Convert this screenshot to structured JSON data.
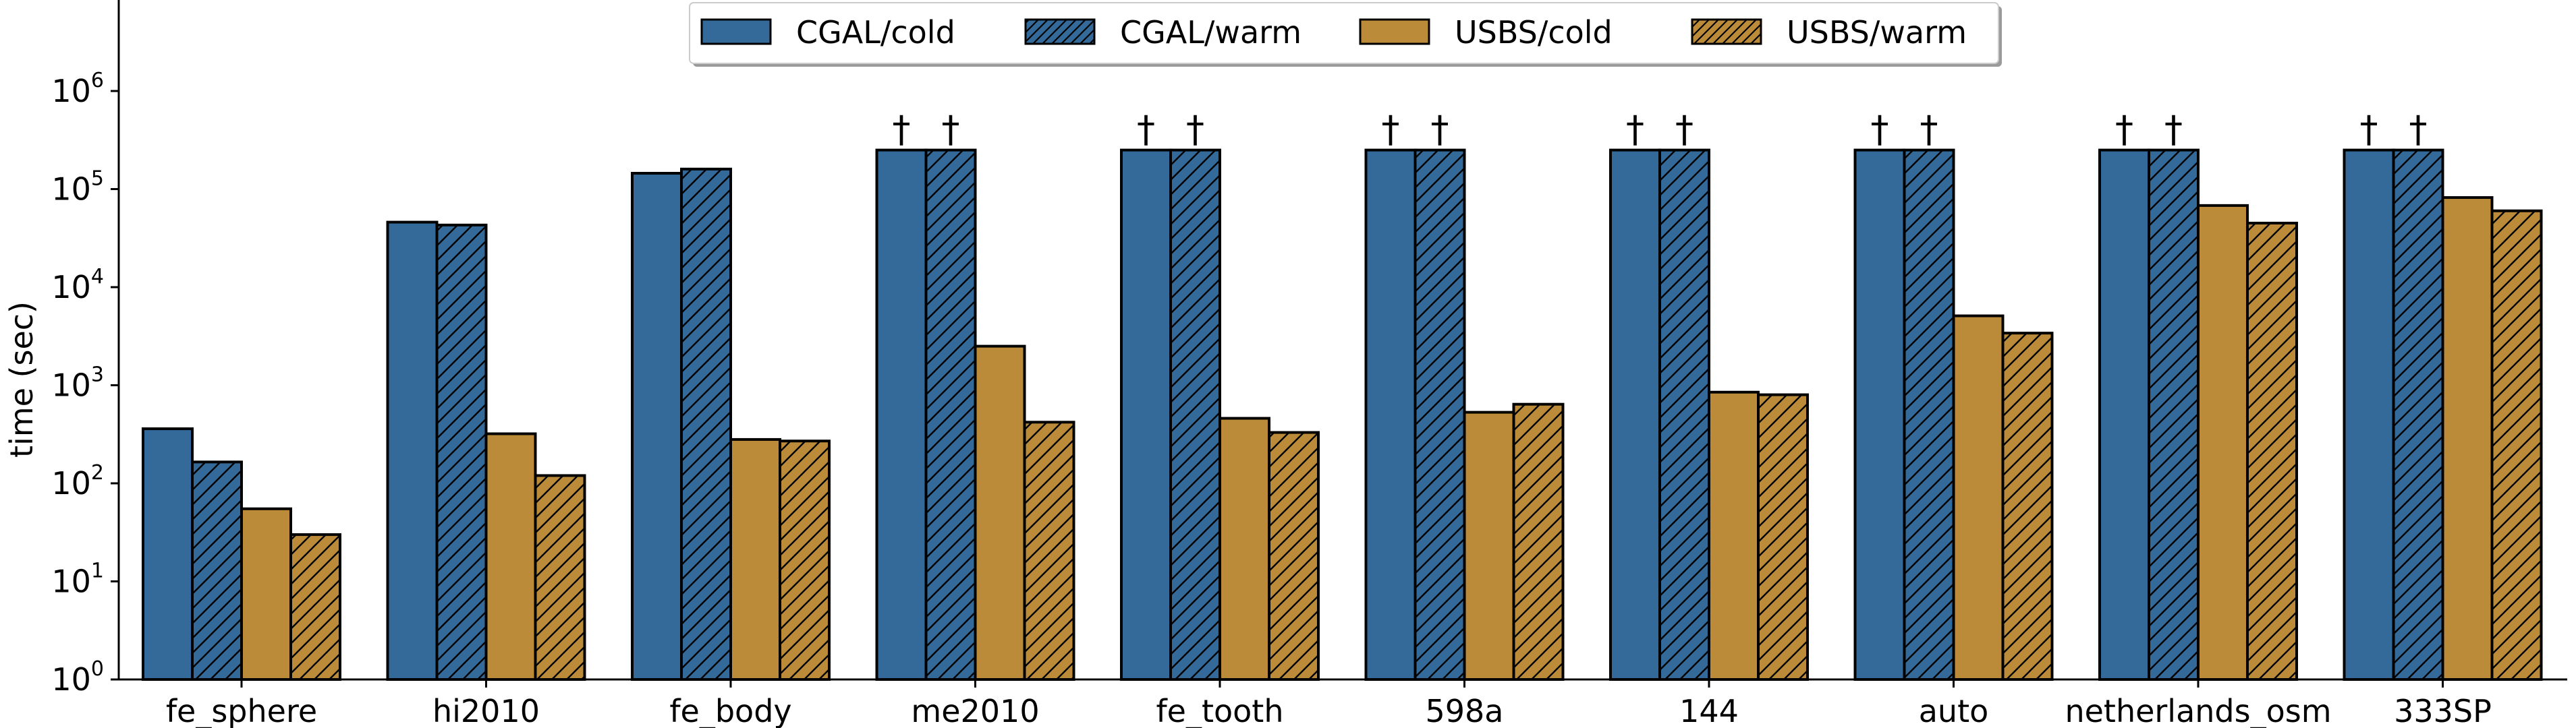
{
  "chart_data": {
    "type": "bar",
    "scale": "log",
    "title": "",
    "xlabel": "",
    "ylabel": "time (sec)",
    "ylim": [
      1,
      10000000
    ],
    "yticks": [
      {
        "value": 1,
        "base": "10",
        "exp": "0"
      },
      {
        "value": 10,
        "base": "10",
        "exp": "1"
      },
      {
        "value": 100,
        "base": "10",
        "exp": "2"
      },
      {
        "value": 1000,
        "base": "10",
        "exp": "3"
      },
      {
        "value": 10000,
        "base": "10",
        "exp": "4"
      },
      {
        "value": 100000,
        "base": "10",
        "exp": "5"
      },
      {
        "value": 1000000,
        "base": "10",
        "exp": "6"
      }
    ],
    "categories": [
      "fe_sphere",
      "hi2010",
      "fe_body",
      "me2010",
      "fe_tooth",
      "598a",
      "144",
      "auto",
      "netherlands_osm",
      "333SP"
    ],
    "series": [
      {
        "name": "CGAL/cold",
        "color": "#336a99",
        "hatch": false,
        "values": [
          360,
          46000,
          145000,
          250000,
          250000,
          250000,
          250000,
          250000,
          250000,
          250000
        ],
        "timeout": [
          false,
          false,
          false,
          true,
          true,
          true,
          true,
          true,
          true,
          true
        ]
      },
      {
        "name": "CGAL/warm",
        "color": "#336a99",
        "hatch": true,
        "values": [
          165,
          43000,
          160000,
          250000,
          250000,
          250000,
          250000,
          250000,
          250000,
          250000
        ],
        "timeout": [
          false,
          false,
          false,
          true,
          true,
          true,
          true,
          true,
          true,
          true
        ]
      },
      {
        "name": "USBS/cold",
        "color": "#bc8b3a",
        "hatch": false,
        "values": [
          55,
          320,
          280,
          2500,
          460,
          530,
          850,
          5100,
          68000,
          82000
        ],
        "timeout": [
          false,
          false,
          false,
          false,
          false,
          false,
          false,
          false,
          false,
          false
        ]
      },
      {
        "name": "USBS/warm",
        "color": "#bc8b3a",
        "hatch": true,
        "values": [
          30,
          120,
          270,
          420,
          330,
          640,
          800,
          3400,
          45000,
          60000
        ],
        "timeout": [
          false,
          false,
          false,
          false,
          false,
          false,
          false,
          false,
          false,
          false
        ]
      }
    ],
    "timeout_marker": "†",
    "legend": {
      "placement": "top-center",
      "ncol": 4
    }
  }
}
